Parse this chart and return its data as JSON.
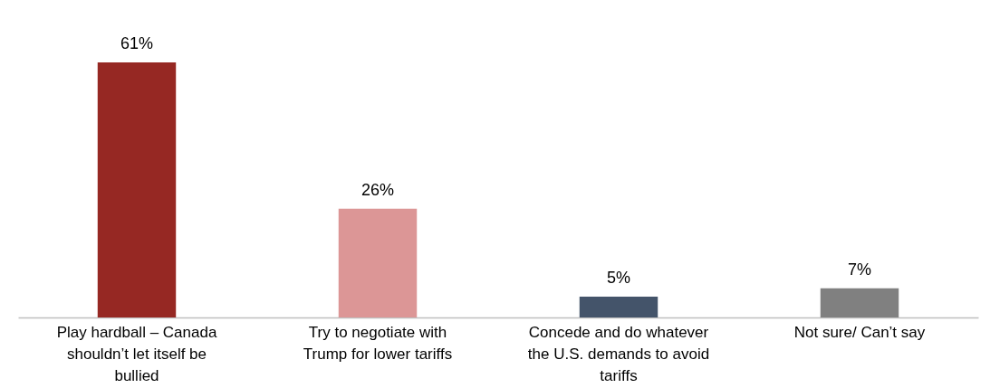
{
  "chart_data": {
    "type": "bar",
    "categories": [
      "Play hardball – Canada shouldn’t let itself be bullied",
      "Try to negotiate with Trump for lower tariffs",
      "Concede and do whatever the U.S. demands to avoid tariffs",
      "Not sure/ Can’t say"
    ],
    "values": [
      61,
      26,
      5,
      7
    ],
    "colors": [
      "#962823",
      "#dc9696",
      "#44546a",
      "#808080"
    ],
    "data_labels": true,
    "value_labels": [
      "61%",
      "26%",
      "5%",
      "7%"
    ]
  }
}
